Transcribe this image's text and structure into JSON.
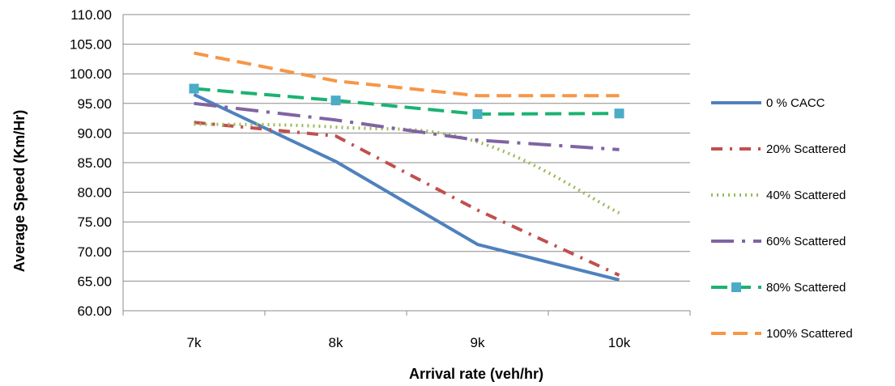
{
  "chart_data": {
    "type": "line",
    "title": "",
    "xlabel": "Arrival rate (veh/hr)",
    "ylabel": "Average Speed (Km/Hr)",
    "categories": [
      "7k",
      "8k",
      "9k",
      "10k"
    ],
    "ylim": [
      60,
      110
    ],
    "ytick_step": 5,
    "ytick_labels": [
      "60.00",
      "65.00",
      "70.00",
      "75.00",
      "80.00",
      "85.00",
      "90.00",
      "95.00",
      "100.00",
      "105.00",
      "110.00"
    ],
    "grid": "horizontal",
    "legend_position": "right",
    "series": [
      {
        "name": "0 % CACC",
        "values": [
          96.5,
          85.2,
          71.2,
          65.2
        ],
        "color": "#4F81BD",
        "dash": "",
        "width": 4,
        "marker": "none",
        "smooth": false
      },
      {
        "name": "20% Scattered",
        "values": [
          91.8,
          89.5,
          77.0,
          66.0
        ],
        "color": "#C0504D",
        "dash": "14,9,3,9",
        "width": 4,
        "marker": "none",
        "smooth": false
      },
      {
        "name": "40% Scattered",
        "values": [
          91.5,
          91.0,
          88.5,
          76.5
        ],
        "color": "#9BBB59",
        "dash": "2,5",
        "width": 4,
        "marker": "none",
        "smooth": true
      },
      {
        "name": "60% Scattered",
        "values": [
          95.0,
          92.2,
          88.8,
          87.2
        ],
        "color": "#8064A2",
        "dash": "28,10,4,10",
        "width": 4,
        "marker": "none",
        "smooth": false
      },
      {
        "name": "80% Scattered",
        "values": [
          97.5,
          95.5,
          93.2,
          93.3
        ],
        "color": "#1BB273",
        "dash": "20,9",
        "width": 4,
        "marker": "square",
        "marker_color": "#4BACC6",
        "smooth": false
      },
      {
        "name": "100% Scattered",
        "values": [
          103.5,
          98.8,
          96.3,
          96.3
        ],
        "color": "#F79646",
        "dash": "18,9",
        "width": 4,
        "marker": "none",
        "smooth": false
      }
    ]
  }
}
